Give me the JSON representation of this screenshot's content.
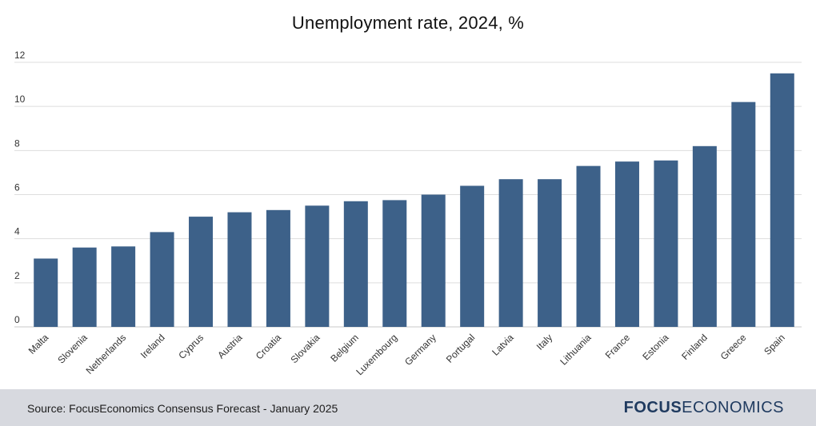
{
  "title": "Unemployment rate, 2024, %",
  "source": "Source: FocusEconomics Consensus Forecast - January 2025",
  "logo": {
    "part1": "FOCUS",
    "part2": "ECONOMICS"
  },
  "colors": {
    "bar": "#3d6189",
    "grid": "#dddddd",
    "footer": "#d7d9df",
    "logo": "#1f3a5f"
  },
  "chart_data": {
    "type": "bar",
    "title": "Unemployment rate, 2024, %",
    "xlabel": "",
    "ylabel": "",
    "ylim": [
      0,
      12
    ],
    "yticks": [
      0,
      2,
      4,
      6,
      8,
      10,
      12
    ],
    "grid": true,
    "categories": [
      "Malta",
      "Slovenia",
      "Netherlands",
      "Ireland",
      "Cyprus",
      "Austria",
      "Croatia",
      "Slovakia",
      "Belgium",
      "Luxembourg",
      "Germany",
      "Portugal",
      "Latvia",
      "Italy",
      "Lithuania",
      "France",
      "Estonia",
      "Finland",
      "Greece",
      "Spain"
    ],
    "values": [
      3.1,
      3.6,
      3.65,
      4.3,
      5.0,
      5.2,
      5.3,
      5.5,
      5.7,
      5.75,
      6.0,
      6.4,
      6.7,
      6.7,
      7.3,
      7.5,
      7.55,
      8.2,
      10.2,
      11.5
    ]
  }
}
